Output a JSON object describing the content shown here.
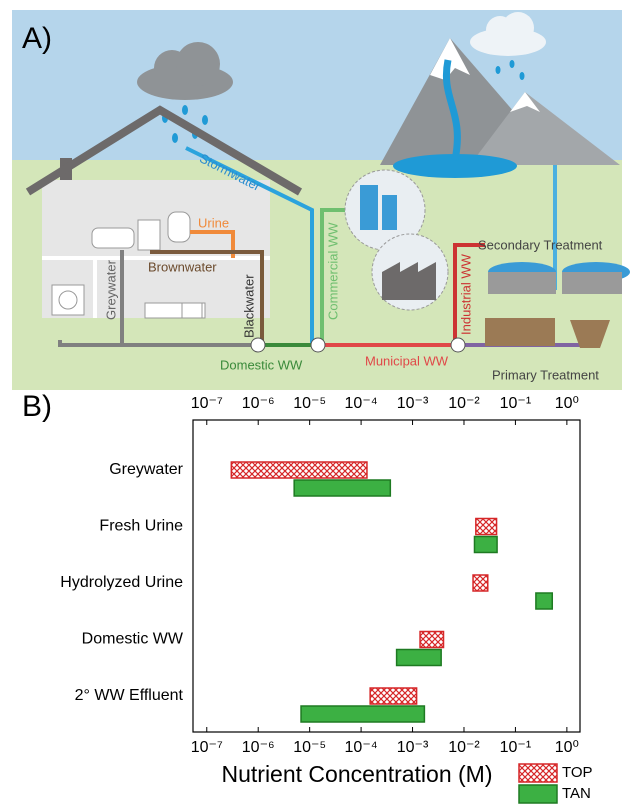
{
  "panel_a": {
    "label": "A)",
    "stormwater": "Stormwater",
    "urine": "Urine",
    "brownwater": "Brownwater",
    "greywater": "Greywater",
    "blackwater": "Blackwater",
    "domestic": "Domestic WW",
    "commercial": "Commercial WW",
    "municipal": "Municipal WW",
    "industrial": "Industrial WW",
    "secondary": "Secondary Treatment",
    "primary": "Primary Treatment"
  },
  "panel_b_label": "B)",
  "chart_data": {
    "type": "floating-bar",
    "xlabel": "Nutrient Concentration (M)",
    "xscale": "log",
    "categories": [
      "Greywater",
      "Fresh Urine",
      "Hydrolyzed Urine",
      "Domestic WW",
      "2° WW Effluent"
    ],
    "series": [
      {
        "name": "TOP",
        "color": "#d62728",
        "pattern": "crosshatch",
        "low": [
          3e-07,
          0.017,
          0.015,
          0.0014,
          0.00015
        ],
        "high": [
          0.00013,
          0.043,
          0.029,
          0.004,
          0.0012
        ]
      },
      {
        "name": "TAN",
        "color": "#3cb043",
        "edge": "#1e7a22",
        "low": [
          5e-06,
          0.016,
          0.25,
          0.00049,
          6.8e-06
        ],
        "high": [
          0.00037,
          0.044,
          0.52,
          0.0036,
          0.0017
        ]
      }
    ],
    "xlim": [
      5.4e-08,
      1.8
    ],
    "xticks": [
      {
        "value": 1e-07,
        "label": "10⁻⁷"
      },
      {
        "value": 1e-06,
        "label": "10⁻⁶"
      },
      {
        "value": 1e-05,
        "label": "10⁻⁵"
      },
      {
        "value": 0.0001,
        "label": "10⁻⁴"
      },
      {
        "value": 0.001,
        "label": "10⁻³"
      },
      {
        "value": 0.01,
        "label": "10⁻²"
      },
      {
        "value": 0.1,
        "label": "10⁻¹"
      },
      {
        "value": 1,
        "label": "10⁰"
      }
    ],
    "legend": "bottom-right"
  }
}
